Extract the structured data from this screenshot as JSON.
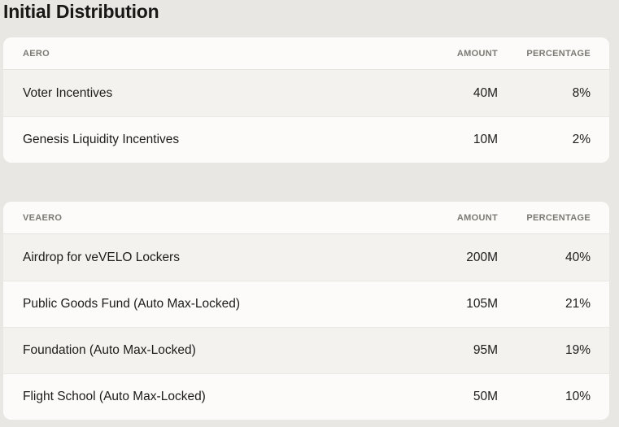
{
  "title": "Initial Distribution",
  "tables": [
    {
      "headers": {
        "name": "AERO",
        "amount": "AMOUNT",
        "percentage": "PERCENTAGE"
      },
      "rows": [
        {
          "name": "Voter Incentives",
          "amount": "40M",
          "percentage": "8%"
        },
        {
          "name": "Genesis Liquidity Incentives",
          "amount": "10M",
          "percentage": "2%"
        }
      ]
    },
    {
      "headers": {
        "name": "VEAERO",
        "amount": "AMOUNT",
        "percentage": "PERCENTAGE"
      },
      "rows": [
        {
          "name": "Airdrop for veVELO Lockers",
          "amount": "200M",
          "percentage": "40%"
        },
        {
          "name": "Public Goods Fund (Auto Max-Locked)",
          "amount": "105M",
          "percentage": "21%"
        },
        {
          "name": "Foundation (Auto Max-Locked)",
          "amount": "95M",
          "percentage": "19%"
        },
        {
          "name": "Flight School (Auto Max-Locked)",
          "amount": "50M",
          "percentage": "10%"
        }
      ]
    }
  ]
}
